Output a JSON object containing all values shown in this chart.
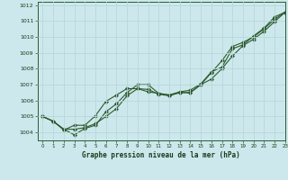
{
  "title": "Graphe pression niveau de la mer (hPa)",
  "bg_color": "#cce8ec",
  "grid_color": "#aacccc",
  "line_color": "#2d5a2d",
  "xlim": [
    -0.5,
    23
  ],
  "ylim": [
    1003.5,
    1012.2
  ],
  "yticks": [
    1004,
    1005,
    1006,
    1007,
    1008,
    1009,
    1010,
    1011,
    1012
  ],
  "xticks": [
    0,
    1,
    2,
    3,
    4,
    5,
    6,
    7,
    8,
    9,
    10,
    11,
    12,
    13,
    14,
    15,
    16,
    17,
    18,
    19,
    20,
    21,
    22,
    23
  ],
  "series1": [
    1005.0,
    1004.7,
    1004.2,
    1003.85,
    1004.25,
    1004.45,
    1005.3,
    1005.8,
    1006.5,
    1007.0,
    1007.0,
    1006.45,
    1006.35,
    1006.5,
    1006.5,
    1007.0,
    1007.75,
    1008.5,
    1009.4,
    1009.65,
    1010.0,
    1010.5,
    1011.1,
    1011.55
  ],
  "series2": [
    1005.0,
    1004.7,
    1004.2,
    1004.2,
    1004.3,
    1004.55,
    1005.0,
    1005.5,
    1006.3,
    1006.75,
    1006.7,
    1006.4,
    1006.3,
    1006.5,
    1006.5,
    1007.0,
    1007.35,
    1008.0,
    1008.8,
    1009.45,
    1009.85,
    1010.35,
    1010.95,
    1011.55
  ],
  "series3": [
    1005.0,
    1004.7,
    1004.15,
    1004.45,
    1004.45,
    1005.05,
    1005.95,
    1006.35,
    1006.75,
    1006.75,
    1006.55,
    1006.45,
    1006.35,
    1006.55,
    1006.65,
    1007.05,
    1007.8,
    1008.1,
    1009.25,
    1009.5,
    1010.05,
    1010.55,
    1011.25,
    1011.55
  ]
}
